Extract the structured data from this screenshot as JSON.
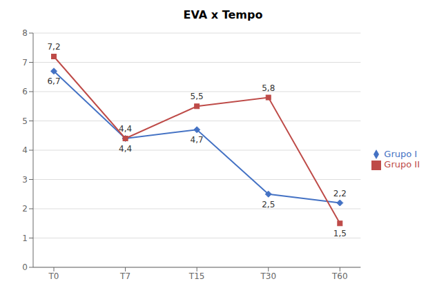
{
  "chart_data": {
    "type": "line",
    "title": "EVA x Tempo",
    "categories": [
      "T0",
      "T7",
      "T15",
      "T30",
      "T60"
    ],
    "series": [
      {
        "name": "Grupo I",
        "color": "#4472C4",
        "marker": "diamond",
        "values": [
          6.7,
          4.4,
          4.7,
          2.5,
          2.2
        ],
        "value_labels": [
          "6,7",
          "4,4",
          "4,7",
          "2,5",
          "2,2"
        ]
      },
      {
        "name": "Grupo II",
        "color": "#BE4B48",
        "marker": "square",
        "values": [
          7.2,
          4.4,
          5.5,
          5.8,
          1.5
        ],
        "value_labels": [
          "7,2",
          "4,4",
          "5,5",
          "5,8",
          "1,5"
        ]
      }
    ],
    "ylim": [
      0,
      8
    ],
    "yticks": [
      0,
      1,
      2,
      3,
      4,
      5,
      6,
      7,
      8
    ],
    "grid": true,
    "legend": "right",
    "data_labels": true
  }
}
